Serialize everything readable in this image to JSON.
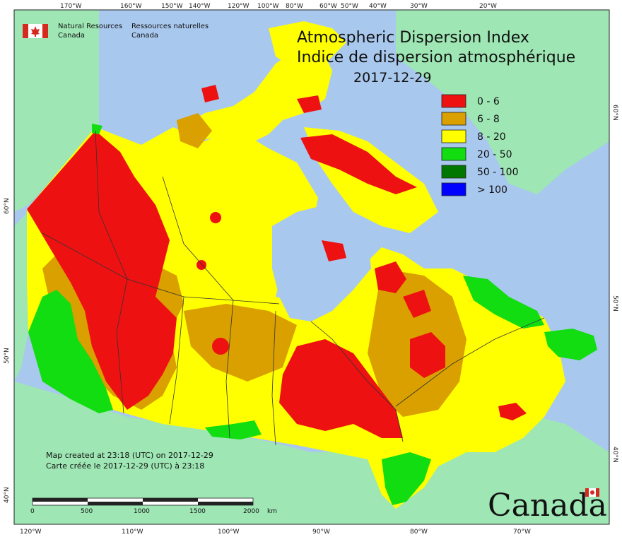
{
  "title": {
    "line1": "Atmospheric Dispersion Index",
    "line2": "Indice de dispersion atmosphérique",
    "date": "2017-12-29"
  },
  "agency": {
    "en_line1": "Natural Resources",
    "en_line2": "Canada",
    "fr_line1": "Ressources naturelles",
    "fr_line2": "Canada",
    "flag_icon": "canada-flag-icon"
  },
  "legend": [
    {
      "label": "0 - 6",
      "color": "#ee1111"
    },
    {
      "label": "6 - 8",
      "color": "#d9a000"
    },
    {
      "label": "8 - 20",
      "color": "#ffff00"
    },
    {
      "label": "20 - 50",
      "color": "#11dd11"
    },
    {
      "label": "50 - 100",
      "color": "#007700"
    },
    {
      "label": "> 100",
      "color": "#0000ff"
    }
  ],
  "notes": {
    "line1": "Map created at 23:18 (UTC) on 2017-12-29",
    "line2": "Carte créée le 2017-12-29 (UTC) à 23:18"
  },
  "scalebar": {
    "labels": [
      "0",
      "500",
      "1000",
      "1500",
      "2000"
    ],
    "unit": "km"
  },
  "graticule": {
    "top": [
      "170°W",
      "160°W",
      "150°W",
      "140°W",
      "120°W",
      "100°W",
      "80°W",
      "60°W",
      "50°W",
      "40°W",
      "30°W",
      "20°W"
    ],
    "bottom": [
      "120°W",
      "110°W",
      "100°W",
      "90°W",
      "80°W",
      "70°W"
    ],
    "left": [
      "60°N",
      "50°N",
      "40°N"
    ],
    "right": [
      "60°N",
      "50°N",
      "40°N"
    ]
  },
  "wordmark": "Canada",
  "colors": {
    "ocean": "#a9c8ee",
    "land": "#9ee6b4"
  }
}
